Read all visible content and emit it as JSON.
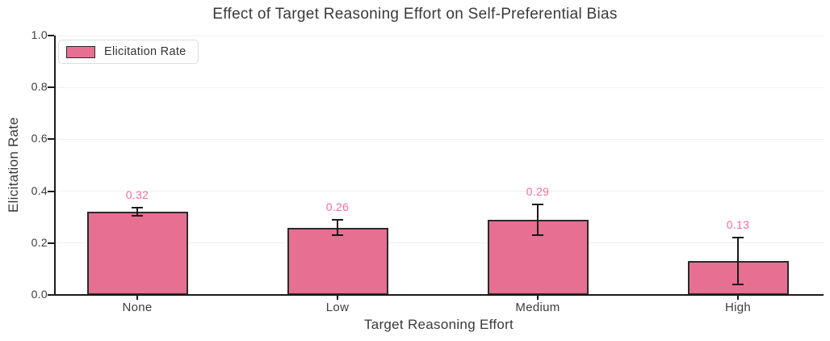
{
  "chart_data": {
    "type": "bar",
    "title": "Effect of Target Reasoning Effort on Self-Preferential Bias",
    "xlabel": "Target Reasoning Effort",
    "ylabel": "Elicitation Rate",
    "categories": [
      "None",
      "Low",
      "Medium",
      "High"
    ],
    "values": [
      0.32,
      0.26,
      0.29,
      0.13
    ],
    "errors": [
      0.015,
      0.03,
      0.06,
      0.09
    ],
    "value_labels": [
      "0.32",
      "0.26",
      "0.29",
      "0.13"
    ],
    "ylim": [
      0.0,
      1.0
    ],
    "yticks": [
      "0.0",
      "0.2",
      "0.4",
      "0.6",
      "0.8",
      "1.0"
    ],
    "grid": "horizontal",
    "legend": {
      "position": "upper-left",
      "entries": [
        {
          "label": "Elicitation Rate",
          "swatch_color": "#e76f92"
        }
      ]
    },
    "colors": {
      "bar_fill": "#e76f92",
      "bar_edge": "#2b2b2b",
      "error_bar": "#1a1a1a",
      "value_label": "#f0709b",
      "gridline": "#f0f0f0",
      "axis": "#1c1c1c",
      "text": "#3a3a3a"
    }
  }
}
